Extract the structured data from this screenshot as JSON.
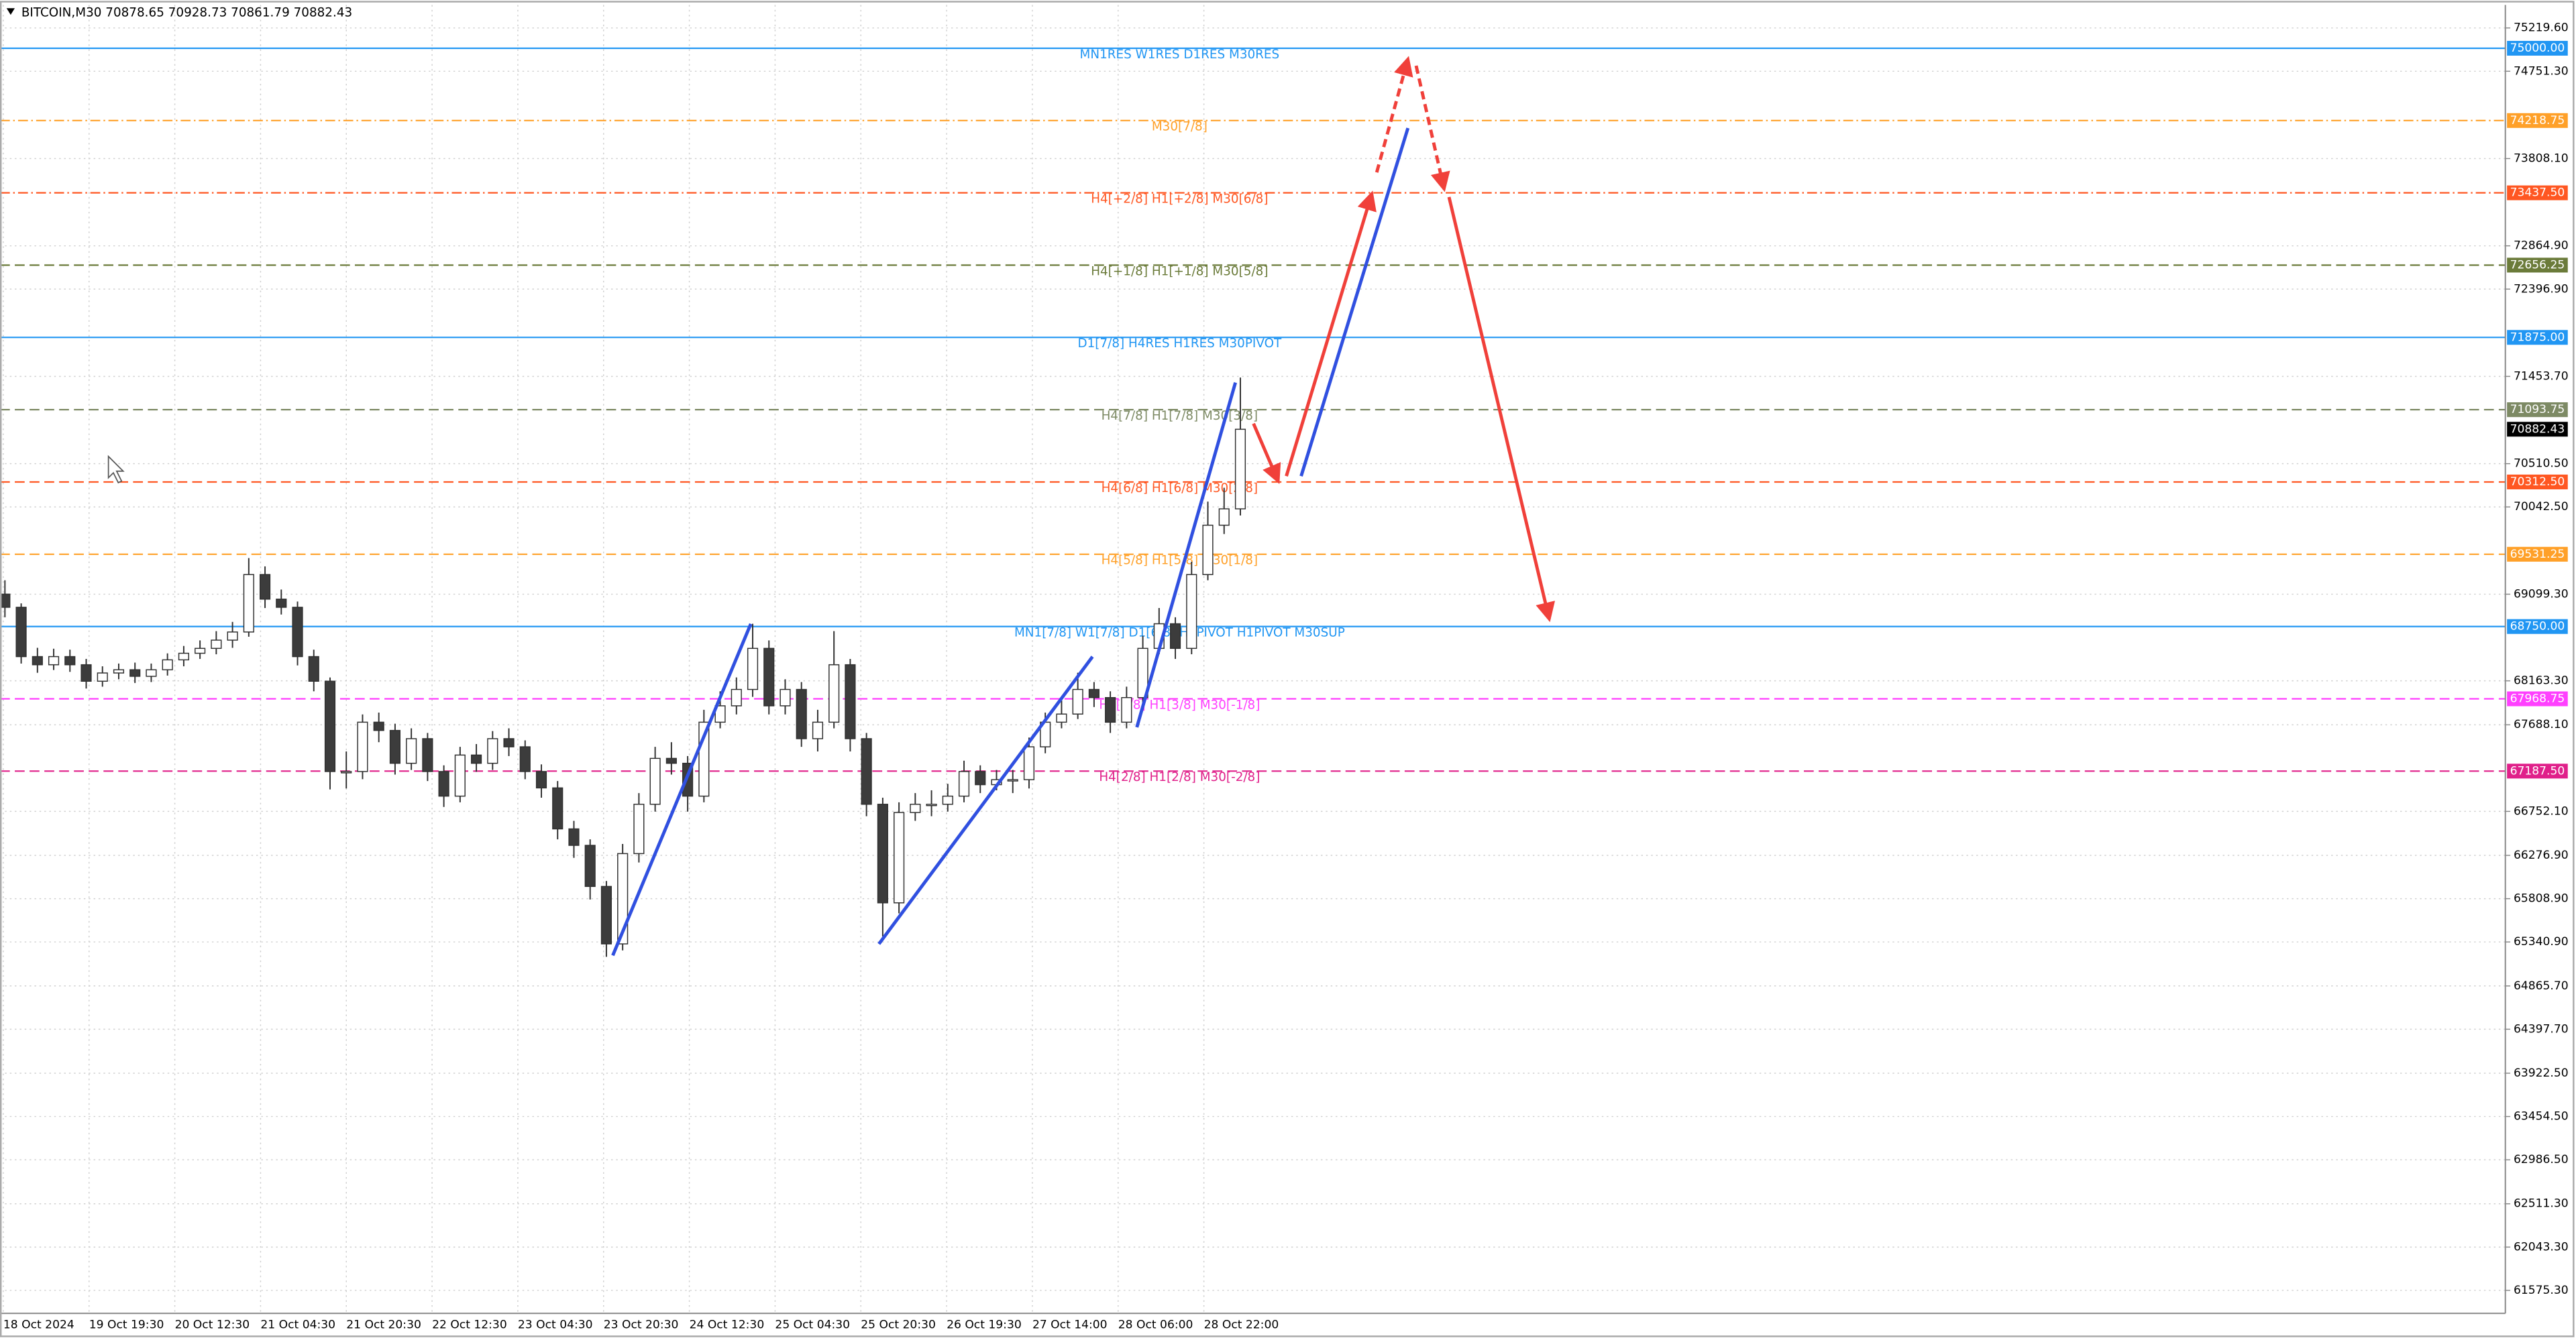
{
  "chart_data": {
    "type": "candlestick",
    "title": "BITCOIN,M30  70878.65 70928.73 70861.79 70882.43",
    "categories": [
      "18 Oct 2024",
      "19 Oct 19:30",
      "20 Oct 12:30",
      "21 Oct 04:30",
      "21 Oct 20:30",
      "22 Oct 12:30",
      "23 Oct 04:30",
      "23 Oct 20:30",
      "24 Oct 12:30",
      "25 Oct 04:30",
      "25 Oct 20:30",
      "26 Oct 19:30",
      "27 Oct 14:00",
      "28 Oct 06:00",
      "28 Oct 22:00"
    ],
    "open": [
      69100,
      68958,
      68425,
      68337,
      68425,
      68337,
      68159,
      68248,
      68283,
      68212,
      68283,
      68390,
      68461,
      68514,
      68603,
      68691,
      69312,
      69046,
      68958,
      68425,
      68159,
      67183,
      67183,
      67716,
      67627,
      67272,
      67538,
      67183,
      66917,
      67361,
      67272,
      67538,
      67450,
      67183,
      67006,
      66563,
      66385,
      65941,
      65320,
      66296,
      66829,
      67325,
      67272,
      66917,
      67716,
      67893,
      68070,
      68514,
      67893,
      68070,
      67538,
      67716,
      68337,
      67538,
      66829,
      65764,
      66740,
      66829,
      66829,
      66917,
      67183,
      67041,
      67095,
      67095,
      67450,
      67716,
      67804,
      68070,
      67982,
      67716,
      67982,
      68514,
      68780,
      68514,
      69312,
      69845,
      70022
    ],
    "high": [
      69250,
      69000,
      68520,
      68510,
      68500,
      68400,
      68320,
      68350,
      68360,
      68350,
      68460,
      68540,
      68600,
      68700,
      68800,
      69490,
      69400,
      69150,
      69020,
      68500,
      68200,
      67400,
      67800,
      67820,
      67700,
      67650,
      67600,
      67250,
      67450,
      67480,
      67620,
      67650,
      67520,
      67260,
      67080,
      66650,
      66450,
      66000,
      66400,
      66950,
      67450,
      67500,
      67350,
      67850,
      68050,
      68200,
      68780,
      68600,
      68180,
      68150,
      67850,
      68700,
      68400,
      67600,
      66900,
      66850,
      66950,
      66980,
      67050,
      67300,
      67250,
      67200,
      67200,
      67550,
      67820,
      67950,
      68250,
      68150,
      68050,
      68100,
      68650,
      68950,
      68850,
      69450,
      70100,
      70250,
      71441
    ],
    "low": [
      68850,
      68350,
      68250,
      68280,
      68260,
      68080,
      68100,
      68180,
      68140,
      68150,
      68220,
      68320,
      68400,
      68450,
      68520,
      68640,
      68950,
      68880,
      68330,
      68050,
      66990,
      67000,
      67100,
      67500,
      67150,
      67200,
      67080,
      66800,
      66850,
      67180,
      67200,
      67350,
      67100,
      66900,
      66450,
      66250,
      65800,
      65180,
      65250,
      66200,
      66750,
      67150,
      66750,
      66850,
      67650,
      67800,
      67990,
      67800,
      67800,
      67450,
      67400,
      67650,
      67400,
      66700,
      65400,
      65650,
      66650,
      66700,
      66750,
      66850,
      66950,
      66980,
      66950,
      67000,
      67380,
      67650,
      67750,
      67880,
      67600,
      67650,
      67900,
      68450,
      68400,
      68450,
      69250,
      69750,
      69950
    ],
    "close": [
      68958,
      68425,
      68337,
      68425,
      68337,
      68159,
      68248,
      68283,
      68212,
      68283,
      68390,
      68461,
      68514,
      68603,
      68691,
      69312,
      69046,
      68958,
      68425,
      68159,
      67183,
      67183,
      67716,
      67627,
      67272,
      67538,
      67183,
      66917,
      67361,
      67272,
      67538,
      67450,
      67183,
      67006,
      66563,
      66385,
      65941,
      65320,
      66296,
      66829,
      67325,
      67272,
      66917,
      67716,
      67893,
      68070,
      68514,
      67893,
      68070,
      67538,
      67716,
      68337,
      67538,
      66829,
      65764,
      66740,
      66829,
      66829,
      66917,
      67183,
      67041,
      67095,
      67095,
      67450,
      67716,
      67804,
      68070,
      67982,
      67716,
      67982,
      68514,
      68780,
      68514,
      69312,
      69845,
      70022,
      70882
    ],
    "up_color": "#ffffff",
    "down_color": "#3c3c3c",
    "ylim": [
      61327,
      75468
    ],
    "yticks": [
      {
        "value": 75219.6,
        "label": "75219.60"
      },
      {
        "value": 74751.3,
        "label": "74751.30"
      },
      {
        "value": 73808.1,
        "label": "73808.10"
      },
      {
        "value": 72864.9,
        "label": "72864.90"
      },
      {
        "value": 72396.9,
        "label": "72396.90"
      },
      {
        "value": 71453.7,
        "label": "71453.70"
      },
      {
        "value": 70510.5,
        "label": "70510.50"
      },
      {
        "value": 70042.5,
        "label": "70042.50"
      },
      {
        "value": 69099.3,
        "label": "69099.30"
      },
      {
        "value": 68163.3,
        "label": "68163.30"
      },
      {
        "value": 67688.1,
        "label": "67688.10"
      },
      {
        "value": 66752.1,
        "label": "66752.10"
      },
      {
        "value": 66276.9,
        "label": "66276.90"
      },
      {
        "value": 65808.9,
        "label": "65808.90"
      },
      {
        "value": 65340.9,
        "label": "65340.90"
      },
      {
        "value": 64865.7,
        "label": "64865.70"
      },
      {
        "value": 64397.7,
        "label": "64397.70"
      },
      {
        "value": 63922.5,
        "label": "63922.50"
      },
      {
        "value": 63454.5,
        "label": "63454.50"
      },
      {
        "value": 62986.5,
        "label": "62986.50"
      },
      {
        "value": 62511.3,
        "label": "62511.30"
      },
      {
        "value": 62043.3,
        "label": "62043.30"
      },
      {
        "value": 61575.3,
        "label": "61575.30"
      }
    ],
    "grid": true,
    "levels": [
      {
        "value": 75000,
        "label": "75000.00",
        "text": "MN1RES W1RES D1RES M30RES",
        "color": "#2196f3",
        "dash": "none"
      },
      {
        "value": 74218.75,
        "label": "74218.75",
        "text": "M30[7/8]",
        "color": "#ffa028",
        "dash": "6 2 1 2"
      },
      {
        "value": 73437.5,
        "label": "73437.50",
        "text": "H4[+2/8] H1[+2/8] M30[6/8]",
        "color": "#ff5722",
        "dash": "6 2 1 2"
      },
      {
        "value": 72656.25,
        "label": "72656.25",
        "text": "H4[+1/8] H1[+1/8] M30[5/8]",
        "color": "#6b7b3a",
        "dash": "6 3"
      },
      {
        "value": 71875,
        "label": "71875.00",
        "text": "D1[7/8] H4RES H1RES M30PIVOT",
        "color": "#2196f3",
        "dash": "none"
      },
      {
        "value": 71093.75,
        "label": "71093.75",
        "text": "H4[7/8] H1[7/8] M30[3/8]",
        "color": "#7d8a64",
        "dash": "6 3"
      },
      {
        "value": 70312.5,
        "label": "70312.50",
        "text": "H4[6/8] H1[6/8] M30[2/8]",
        "color": "#ff5722",
        "dash": "6 3"
      },
      {
        "value": 69531.25,
        "label": "69531.25",
        "text": "H4[5/8] H1[5/8] M30[1/8]",
        "color": "#ffa028",
        "dash": "6 3"
      },
      {
        "value": 68750,
        "label": "68750.00",
        "text": "MN1[7/8] W1[7/8] D1[6/8] H4PIVOT H1PIVOT M30SUP",
        "color": "#2196f3",
        "dash": "none"
      },
      {
        "value": 67968.75,
        "label": "67968.75",
        "text": "H4[3/8] H1[3/8] M30[-1/8]",
        "color": "#ff40ff",
        "dash": "6 3"
      },
      {
        "value": 67187.5,
        "label": "67187.50",
        "text": "H4[2/8] H1[2/8] M30[-2/8]",
        "color": "#e0208a",
        "dash": "6 3"
      }
    ],
    "current_price": 70882.43
  }
}
